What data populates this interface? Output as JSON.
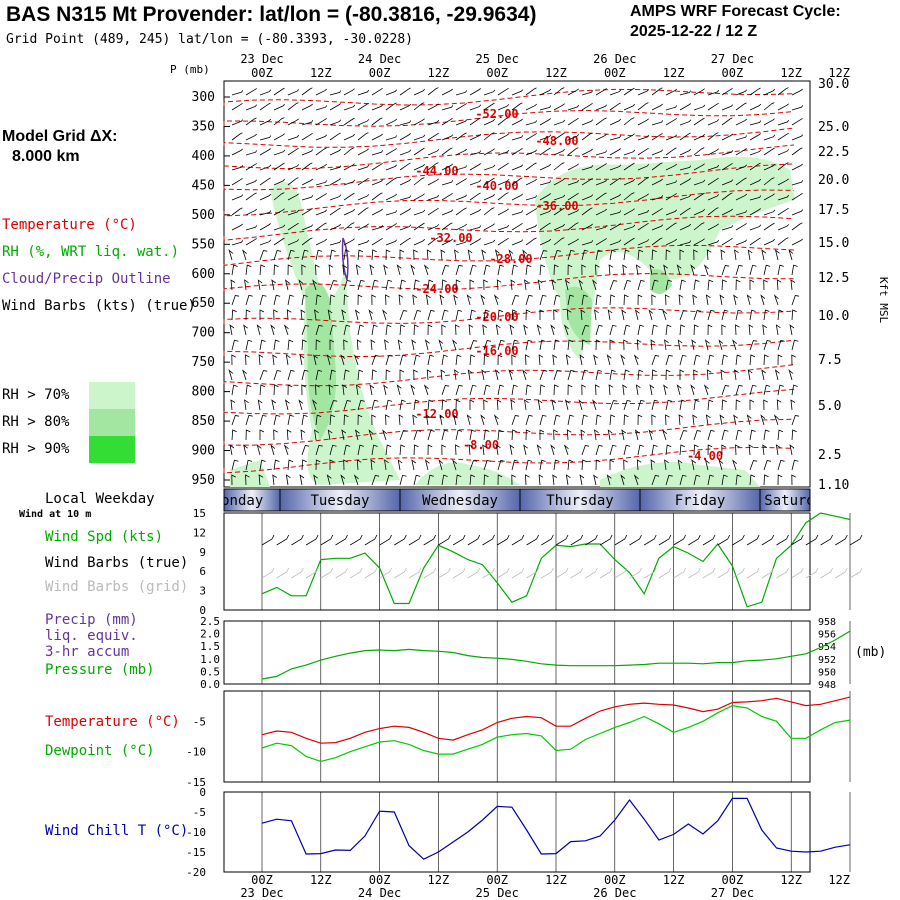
{
  "header": {
    "title": "BAS N315 Mt Provender:  lat/lon = (-80.3816, -29.9634)",
    "grid_point": "Grid Point (489, 245) lat/lon = (-80.3393, -30.0228)",
    "cycle_line1": "AMPS WRF Forecast Cycle:",
    "cycle_line2": "2025-12-22 / 12  Z"
  },
  "left_panel": {
    "model_grid_label": "Model Grid ΔX:",
    "model_grid_value": "8.000 km",
    "temperature": "Temperature (°C)",
    "rh": "RH (%, WRT liq. wat.)",
    "cloud": "Cloud/Precip Outline",
    "wind_barbs": "Wind Barbs (kts) (true)",
    "rh70": "RH > 70%",
    "rh80": "RH > 80%",
    "rh90": "RH > 90%",
    "local_weekday": "Local Weekday",
    "wind_at_10m": "Wind at 10 m",
    "wind_spd": "Wind Spd (kts)",
    "wind_barbs_true": "Wind Barbs (true)",
    "wind_barbs_grid": "Wind Barbs (grid)",
    "precip": "Precip (mm)",
    "liq_equiv": "liq. equiv.",
    "accum": "3-hr accum",
    "pressure": "Pressure (mb)",
    "temp_bottom": "Temperature (°C)",
    "dewpoint": "Dewpoint (°C)",
    "wind_chill": "Wind Chill T (°C)"
  },
  "colors": {
    "temperature": "#dd0000",
    "rh_green": "#00aa00",
    "cloud": "#663399",
    "wind_chill": "#0000aa",
    "rh70": "#ccf5cc",
    "rh80": "#a2e6a2",
    "rh90": "#33dd33"
  },
  "time_axis": {
    "top_dates": [
      "23 Dec",
      "24 Dec",
      "25 Dec",
      "26 Dec",
      "27 Dec"
    ],
    "hour_labels": [
      "00Z",
      "12Z",
      "00Z",
      "12Z",
      "00Z",
      "12Z",
      "00Z",
      "12Z",
      "00Z",
      "12Z"
    ],
    "bottom_dates": [
      "23 Dec",
      "24 Dec",
      "25 Dec",
      "26 Dec",
      "27 Dec"
    ],
    "weekdays": [
      "Monday",
      "Tuesday",
      "Wednesday",
      "Thursday",
      "Friday",
      "Saturday"
    ]
  },
  "chart_data": [
    {
      "type": "contour",
      "name": "upper-air time-height cross section",
      "ylabel": "P (mb)",
      "pressure_ticks": [
        300,
        350,
        400,
        450,
        500,
        550,
        600,
        650,
        700,
        750,
        800,
        850,
        900,
        950
      ],
      "height_ticks": [
        "30.0",
        "25.0",
        "22.5",
        "20.0",
        "17.5",
        "15.0",
        "12.5",
        "10.0",
        "7.5",
        "5.0",
        "2.5",
        "1.10"
      ],
      "height_unit": "Kft MSL",
      "ylim": [
        300,
        960
      ],
      "temperature_contour_labels": [
        "-52.00",
        "-48.00",
        "-44.00",
        "-40.00",
        "-36.00",
        "-32.00",
        "-28.00",
        "-24.00",
        "-20.00",
        "-16.00",
        "-12.00",
        "-8.00",
        "-4.00"
      ]
    },
    {
      "type": "line",
      "name": "10 m wind speed",
      "ylabel": "Wind Spd (kts)",
      "yticks": [
        0,
        3,
        6,
        9,
        12,
        15
      ],
      "ylim": [
        0,
        15
      ],
      "x_hours": [
        0,
        3,
        6,
        9,
        12,
        15,
        18,
        21,
        24,
        27,
        30,
        33,
        36,
        39,
        42,
        45,
        48,
        51,
        54,
        57,
        60,
        63,
        66,
        69,
        72,
        75,
        78,
        81,
        84,
        87,
        90,
        93,
        96,
        99,
        102,
        105,
        108,
        111,
        114,
        117,
        120
      ],
      "values": [
        2.5,
        3.5,
        2.2,
        2.2,
        7.8,
        8,
        8,
        8.8,
        6.5,
        1,
        1,
        6.5,
        10,
        9,
        7.8,
        7,
        4.2,
        1.2,
        2.2,
        8,
        10,
        9.8,
        10.2,
        10.2,
        7.8,
        5.8,
        2.5,
        8,
        9.8,
        8.8,
        7.5,
        10.2,
        6.8,
        0.5,
        1.2,
        8,
        10,
        13.5,
        15,
        14.5,
        14
      ]
    },
    {
      "type": "line",
      "name": "surface pressure",
      "ylabel": "Pressure (mb)",
      "right_ticks": [
        948,
        950,
        952,
        954,
        956,
        958
      ],
      "left_ticks": [
        "0.0",
        "0.5",
        "1.0",
        "1.5",
        "2.0",
        "2.5"
      ],
      "left_label": "Precip (mm)",
      "unit": "(mb)",
      "ylim": [
        948,
        958
      ],
      "x_hours": [
        0,
        3,
        6,
        9,
        12,
        15,
        18,
        21,
        24,
        27,
        30,
        33,
        36,
        39,
        42,
        45,
        48,
        51,
        54,
        57,
        60,
        63,
        66,
        69,
        72,
        75,
        78,
        81,
        84,
        87,
        90,
        93,
        96,
        99,
        102,
        105,
        108,
        111,
        114,
        117,
        120
      ],
      "values": [
        948.8,
        949.2,
        950.4,
        951.0,
        951.8,
        952.4,
        952.9,
        953.3,
        953.4,
        953.3,
        953.5,
        953.3,
        953.2,
        953.0,
        952.5,
        952.2,
        952.1,
        951.9,
        951.6,
        951.2,
        951.0,
        950.9,
        950.9,
        950.9,
        950.9,
        951.0,
        951.1,
        951.3,
        951.3,
        951.3,
        951.2,
        951.4,
        951.4,
        951.7,
        951.8,
        952.0,
        952.4,
        952.8,
        953.8,
        955.0,
        956.4
      ]
    },
    {
      "type": "line",
      "name": "temperature and dewpoint",
      "yticks": [
        -15,
        -10,
        -5
      ],
      "ylim": [
        -15,
        0
      ],
      "x_hours": [
        0,
        3,
        6,
        9,
        12,
        15,
        18,
        21,
        24,
        27,
        30,
        33,
        36,
        39,
        42,
        45,
        48,
        51,
        54,
        57,
        60,
        63,
        66,
        69,
        72,
        75,
        78,
        81,
        84,
        87,
        90,
        93,
        96,
        99,
        102,
        105,
        108,
        111,
        114,
        117,
        120
      ],
      "series": [
        {
          "name": "Temperature (°C)",
          "values": [
            -7.2,
            -6.6,
            -6.8,
            -7.8,
            -8.6,
            -8.5,
            -7.8,
            -6.8,
            -6.2,
            -5.8,
            -6.0,
            -6.8,
            -7.8,
            -8.1,
            -7.2,
            -6.4,
            -5.2,
            -4.5,
            -4.2,
            -4.4,
            -5.8,
            -5.8,
            -4.5,
            -3.3,
            -2.6,
            -2.2,
            -2.0,
            -2.2,
            -2.3,
            -2.8,
            -3.4,
            -3.0,
            -1.9,
            -1.8,
            -1.6,
            -1.2,
            -1.8,
            -2.4,
            -2.2,
            -1.6,
            -1.0
          ]
        },
        {
          "name": "Dewpoint (°C)",
          "values": [
            -9.4,
            -8.6,
            -9.0,
            -10.8,
            -11.6,
            -11.0,
            -10.0,
            -9.2,
            -8.4,
            -8.2,
            -8.8,
            -9.8,
            -10.4,
            -10.4,
            -9.6,
            -8.8,
            -7.6,
            -7.2,
            -7.0,
            -7.4,
            -9.8,
            -9.6,
            -8.0,
            -7.0,
            -6.0,
            -5.2,
            -4.2,
            -5.4,
            -6.8,
            -6.0,
            -5.0,
            -3.6,
            -2.4,
            -2.8,
            -4.2,
            -5.0,
            -7.8,
            -7.8,
            -6.4,
            -5.2,
            -4.8
          ]
        }
      ]
    },
    {
      "type": "line",
      "name": "wind chill",
      "ylabel": "Wind Chill T (°C)",
      "yticks": [
        -20,
        -15,
        -10,
        -5,
        0
      ],
      "ylim": [
        -20,
        0
      ],
      "x_hours": [
        0,
        3,
        6,
        9,
        12,
        15,
        18,
        21,
        24,
        27,
        30,
        33,
        36,
        39,
        42,
        45,
        48,
        51,
        54,
        57,
        60,
        63,
        66,
        69,
        72,
        75,
        78,
        81,
        84,
        87,
        90,
        93,
        96,
        99,
        102,
        105,
        108,
        111,
        114,
        117,
        120
      ],
      "values": [
        -7.8,
        -6.8,
        -7.2,
        -15.5,
        -15.4,
        -14.5,
        -14.6,
        -11.0,
        -4.8,
        -5.0,
        -13.4,
        -16.8,
        -15.0,
        -12.5,
        -10.0,
        -7.0,
        -3.6,
        -3.8,
        -9.5,
        -15.5,
        -15.4,
        -12.4,
        -12.2,
        -11.0,
        -7.0,
        -2.0,
        -6.8,
        -12.0,
        -10.6,
        -8.0,
        -10.5,
        -7.2,
        -1.6,
        -1.6,
        -9.5,
        -14.0,
        -14.8,
        -15.0,
        -14.8,
        -13.8,
        -13.2
      ]
    }
  ]
}
